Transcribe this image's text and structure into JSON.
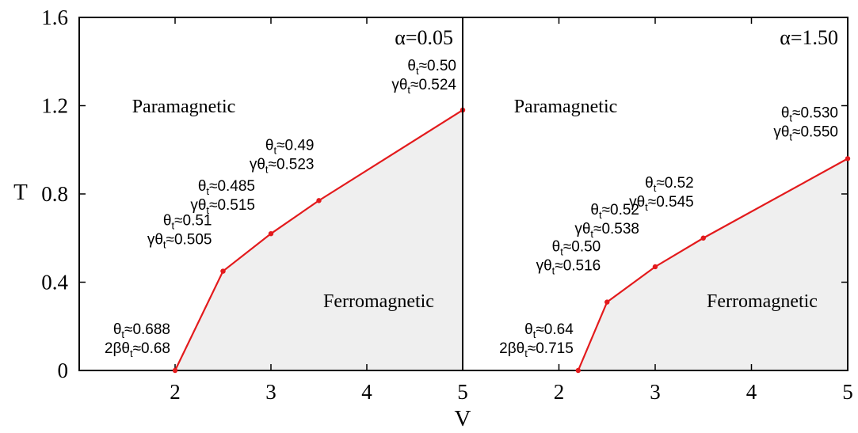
{
  "chart_data": {
    "type": "line",
    "ylabel": "T",
    "xlabel": "V",
    "ylim": [
      0,
      1.6
    ],
    "y_ticks": [
      "0",
      "0.4",
      "0.8",
      "1.2",
      "1.6"
    ],
    "colors": {
      "line": "#e31a1c",
      "fill": "#efefef",
      "frame": "#000000"
    },
    "panels": [
      {
        "alpha_label": "α=0.05",
        "xlim": [
          1,
          5
        ],
        "x_ticks": [
          "2",
          "3",
          "4",
          "5"
        ],
        "region_upper": "Paramagnetic",
        "region_lower": "Ferromagnetic",
        "x": [
          2.0,
          2.5,
          3.0,
          3.5,
          5.0
        ],
        "y": [
          0.0,
          0.45,
          0.62,
          0.77,
          1.18
        ],
        "annotations": [
          {
            "lines": [
              {
                "pre": "θ",
                "sub": "t",
                "post": "≈0.688"
              },
              {
                "pre": "2βθ",
                "sub": "t",
                "post": "≈0.68"
              }
            ]
          },
          {
            "lines": [
              {
                "pre": "θ",
                "sub": "t",
                "post": "≈0.51"
              },
              {
                "pre": "γθ",
                "sub": "t",
                "post": "≈0.505"
              }
            ]
          },
          {
            "lines": [
              {
                "pre": "θ",
                "sub": "t",
                "post": "≈0.485"
              },
              {
                "pre": "γθ",
                "sub": "t",
                "post": "≈0.515"
              }
            ]
          },
          {
            "lines": [
              {
                "pre": "θ",
                "sub": "t",
                "post": "≈0.49"
              },
              {
                "pre": "γθ",
                "sub": "t",
                "post": "≈0.523"
              }
            ]
          },
          {
            "lines": [
              {
                "pre": "θ",
                "sub": "t",
                "post": "≈0.50"
              },
              {
                "pre": "γθ",
                "sub": "t",
                "post": "≈0.524"
              }
            ]
          }
        ]
      },
      {
        "alpha_label": "α=1.50",
        "xlim": [
          1,
          5
        ],
        "x_ticks": [
          "2",
          "3",
          "4",
          "5"
        ],
        "region_upper": "Paramagnetic",
        "region_lower": "Ferromagnetic",
        "x": [
          2.2,
          2.5,
          3.0,
          3.5,
          5.0
        ],
        "y": [
          0.0,
          0.31,
          0.47,
          0.6,
          0.96
        ],
        "annotations": [
          {
            "lines": [
              {
                "pre": "θ",
                "sub": "t",
                "post": "≈0.64"
              },
              {
                "pre": "2βθ",
                "sub": "t",
                "post": "≈0.715"
              }
            ]
          },
          {
            "lines": [
              {
                "pre": "θ",
                "sub": "t",
                "post": "≈0.50"
              },
              {
                "pre": "γθ",
                "sub": "t",
                "post": "≈0.516"
              }
            ]
          },
          {
            "lines": [
              {
                "pre": "θ",
                "sub": "t",
                "post": "≈0.52"
              },
              {
                "pre": "γθ",
                "sub": "t",
                "post": "≈0.538"
              }
            ]
          },
          {
            "lines": [
              {
                "pre": "θ",
                "sub": "t",
                "post": "≈0.52"
              },
              {
                "pre": "γθ",
                "sub": "t",
                "post": "≈0.545"
              }
            ]
          },
          {
            "lines": [
              {
                "pre": "θ",
                "sub": "t",
                "post": "≈0.530"
              },
              {
                "pre": "γθ",
                "sub": "t",
                "post": "≈0.550"
              }
            ]
          }
        ]
      }
    ]
  }
}
